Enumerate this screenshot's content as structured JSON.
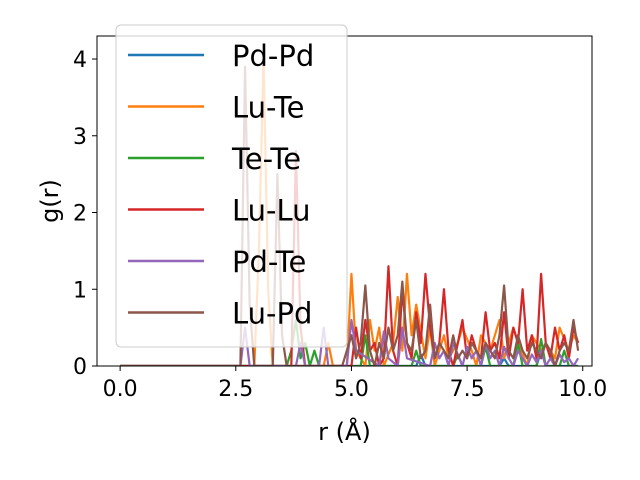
{
  "chart_data": {
    "type": "line",
    "xlabel": "r (Å)",
    "ylabel": "g(r)",
    "xlim": [
      -0.5,
      10.2
    ],
    "ylim": [
      0,
      4.3
    ],
    "xticks": [
      0.0,
      2.5,
      5.0,
      7.5,
      10.0
    ],
    "xtick_labels": [
      "0.0",
      "2.5",
      "5.0",
      "7.5",
      "10.0"
    ],
    "yticks": [
      0,
      1,
      2,
      3,
      4
    ],
    "ytick_labels": [
      "0",
      "1",
      "2",
      "3",
      "4"
    ],
    "grid": false,
    "legend_position": "upper-left",
    "series": [
      {
        "name": "Pd-Pd",
        "color": "#1f77b4",
        "x": [
          0,
          2.5,
          6.4,
          6.5,
          6.6,
          7.5,
          8.2,
          8.3,
          8.4,
          9.0,
          9.1,
          9.2,
          9.9
        ],
        "y": [
          0,
          0,
          0,
          0.15,
          0,
          0,
          0,
          0.1,
          0,
          0,
          0.2,
          0,
          0
        ]
      },
      {
        "name": "Lu-Te",
        "color": "#ff7f0e",
        "x": [
          0,
          2.9,
          3.0,
          3.1,
          3.2,
          3.3,
          4.4,
          4.5,
          4.6,
          4.9,
          5.0,
          5.1,
          5.3,
          5.4,
          5.5,
          5.6,
          5.7,
          5.9,
          6.0,
          6.1,
          6.2,
          6.3,
          6.4,
          6.6,
          6.7,
          6.8,
          7.0,
          7.1,
          7.3,
          7.4,
          7.6,
          7.7,
          7.8,
          8.0,
          8.2,
          8.3,
          8.5,
          8.6,
          8.8,
          8.9,
          9.1,
          9.2,
          9.4,
          9.5,
          9.7,
          9.8,
          9.9
        ],
        "y": [
          0,
          0,
          1.5,
          4.0,
          1.0,
          0,
          0,
          0.3,
          0,
          0,
          1.2,
          0.2,
          0,
          0.6,
          0.2,
          0.5,
          0,
          0.3,
          0.9,
          0.2,
          1.2,
          0.4,
          0.8,
          0.1,
          0.5,
          0,
          0.4,
          0.1,
          0.3,
          0.5,
          0.2,
          0,
          0.4,
          0.2,
          0.6,
          0.1,
          0.5,
          0.3,
          0,
          0.4,
          0.2,
          0.3,
          0.1,
          0.5,
          0.2,
          0.4,
          0.3
        ]
      },
      {
        "name": "Te-Te",
        "color": "#2ca02c",
        "x": [
          0,
          3.6,
          3.7,
          3.8,
          3.9,
          4.0,
          4.1,
          4.2,
          4.3,
          5.2,
          5.3,
          5.4,
          6.3,
          6.4,
          6.5,
          7.2,
          7.3,
          7.4,
          7.8,
          7.9,
          8.0,
          8.5,
          8.6,
          8.7,
          9.0,
          9.1,
          9.2,
          9.5,
          9.6,
          9.7,
          9.9
        ],
        "y": [
          0,
          0,
          0.2,
          0.6,
          0.1,
          0.3,
          0,
          0.2,
          0,
          0,
          0.4,
          0,
          0,
          0.2,
          0,
          0,
          0.15,
          0,
          0,
          0.25,
          0,
          0,
          0.3,
          0,
          0,
          0.35,
          0,
          0,
          0.2,
          0,
          0
        ]
      },
      {
        "name": "Lu-Lu",
        "color": "#d62728",
        "x": [
          0,
          3.7,
          3.8,
          3.9,
          4.0,
          5.0,
          5.1,
          5.2,
          5.3,
          5.4,
          5.5,
          5.6,
          5.7,
          5.8,
          5.9,
          6.0,
          6.1,
          6.2,
          6.3,
          6.4,
          6.5,
          6.6,
          6.7,
          6.8,
          6.9,
          7.0,
          7.1,
          7.2,
          7.3,
          7.4,
          7.5,
          7.6,
          7.7,
          7.8,
          7.9,
          8.0,
          8.1,
          8.2,
          8.3,
          8.4,
          8.5,
          8.6,
          8.7,
          8.8,
          8.9,
          9.0,
          9.1,
          9.2,
          9.3,
          9.4,
          9.5,
          9.6,
          9.7,
          9.8,
          9.9
        ],
        "y": [
          0,
          0,
          2.8,
          0.5,
          0,
          0,
          0.5,
          0.1,
          0.6,
          0.2,
          0.3,
          0,
          0.1,
          1.3,
          0.2,
          0,
          1.0,
          0.3,
          0.1,
          0.7,
          0.3,
          1.2,
          0.5,
          0.1,
          0.3,
          1.0,
          0.2,
          0,
          0.3,
          0.6,
          0.1,
          0.4,
          0.2,
          0.1,
          0.7,
          0.2,
          0.3,
          0.1,
          0.7,
          0.1,
          0.5,
          0.3,
          1.0,
          0.2,
          0.4,
          0.1,
          1.2,
          0.3,
          0.1,
          0.5,
          0.2,
          0.4,
          0.1,
          0.5,
          0.3
        ]
      },
      {
        "name": "Pd-Te",
        "color": "#9467bd",
        "x": [
          0,
          2.6,
          2.7,
          2.8,
          3.8,
          3.9,
          4.0,
          4.3,
          4.4,
          4.5,
          4.9,
          5.0,
          5.1,
          5.6,
          5.7,
          5.8,
          6.0,
          6.1,
          6.2,
          6.7,
          6.8,
          6.9,
          7.0,
          7.1,
          7.2,
          7.4,
          7.5,
          7.6,
          7.7,
          7.8,
          7.9,
          8.0,
          8.1,
          8.2,
          8.3,
          8.4,
          8.5,
          8.6,
          8.7,
          8.8,
          8.9,
          9.0,
          9.1,
          9.2,
          9.3,
          9.4,
          9.5,
          9.6,
          9.7,
          9.8,
          9.9
        ],
        "y": [
          0,
          0,
          0.5,
          0,
          0,
          0.3,
          0,
          0,
          0.5,
          0,
          0,
          0.6,
          0.2,
          0,
          0.45,
          0.1,
          0,
          0.5,
          0.1,
          0,
          0.3,
          0.1,
          0.2,
          0,
          0.3,
          0,
          0.25,
          0.1,
          0.2,
          0,
          0.3,
          0.1,
          0.2,
          0,
          0.25,
          0.1,
          0,
          0.2,
          0.1,
          0,
          0.15,
          0.05,
          0.2,
          0,
          0.1,
          0,
          0.15,
          0.05,
          0.1,
          0,
          0.1
        ]
      },
      {
        "name": "Lu-Pd",
        "color": "#8c564b",
        "x": [
          0,
          2.5,
          2.6,
          2.7,
          2.8,
          2.9,
          3.3,
          3.4,
          3.5,
          3.6,
          4.8,
          4.9,
          5.0,
          5.1,
          5.2,
          5.3,
          5.4,
          5.5,
          5.6,
          5.7,
          5.8,
          5.9,
          6.0,
          6.1,
          6.2,
          6.3,
          6.4,
          6.5,
          6.6,
          6.7,
          6.8,
          6.9,
          7.0,
          7.1,
          7.2,
          7.3,
          7.4,
          7.5,
          7.6,
          7.7,
          7.8,
          7.9,
          8.0,
          8.1,
          8.2,
          8.3,
          8.4,
          8.5,
          8.6,
          8.7,
          8.8,
          8.9,
          9.0,
          9.1,
          9.2,
          9.3,
          9.4,
          9.5,
          9.6,
          9.7,
          9.8,
          9.9
        ],
        "y": [
          0,
          0,
          0,
          3.9,
          0.8,
          0,
          0,
          2.5,
          0.4,
          0,
          0,
          0.2,
          0.4,
          0.1,
          0.3,
          1.05,
          0.2,
          0,
          0.3,
          0.1,
          0.5,
          0.2,
          0.4,
          1.1,
          0.3,
          0.2,
          0.6,
          0.1,
          0.2,
          0.8,
          0.1,
          0.3,
          0.2,
          0.1,
          0.4,
          0.1,
          0.2,
          0.1,
          0.3,
          0.2,
          0.1,
          0.3,
          0.2,
          0.1,
          0.4,
          1.05,
          0.2,
          0.1,
          0.4,
          0.2,
          0.1,
          0.3,
          0.2,
          0.1,
          0.3,
          0.2,
          0,
          0.2,
          0.3,
          0.2,
          0.6,
          0.2
        ]
      }
    ]
  }
}
